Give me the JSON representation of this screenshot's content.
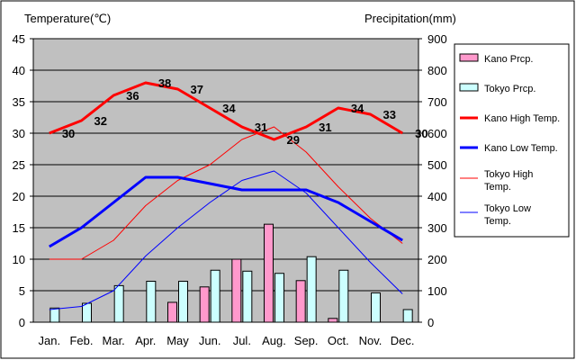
{
  "chart_data": {
    "type": "line",
    "y_left_label": "Temperature(℃)",
    "y_right_label": "Precipitation(mm)",
    "categories": [
      "Jan.",
      "Feb.",
      "Mar.",
      "Apr.",
      "May",
      "Jun.",
      "Jul.",
      "Aug.",
      "Sep.",
      "Oct.",
      "Nov.",
      "Dec."
    ],
    "y_left_ticks": [
      "0",
      "5",
      "10",
      "15",
      "20",
      "25",
      "30",
      "35",
      "40",
      "45"
    ],
    "y_right_ticks": [
      "0",
      "100",
      "200",
      "300",
      "400",
      "500",
      "600",
      "700",
      "800",
      "900"
    ],
    "y_left_range": [
      0,
      45
    ],
    "y_right_range": [
      0,
      900
    ],
    "grid": true,
    "plot_background": "#c0c0c0",
    "legend_position": "right",
    "bars": [
      {
        "name": "Kano Prcp.",
        "color": "#ff99cc",
        "axis": "right",
        "values": [
          0,
          0,
          0,
          0,
          63,
          112,
          200,
          311,
          132,
          12,
          0,
          0
        ]
      },
      {
        "name": "Tokyo Prcp.",
        "color": "#ccffff",
        "axis": "right",
        "values": [
          45,
          60,
          116,
          130,
          130,
          165,
          162,
          155,
          208,
          165,
          93,
          40
        ]
      }
    ],
    "lines": [
      {
        "name": "Kano High Temp.",
        "color": "#ff0000",
        "width": 3,
        "values": [
          30,
          32,
          36,
          38,
          37,
          34,
          31,
          29,
          31,
          34,
          33,
          30
        ],
        "labels": [
          "30",
          "32",
          "36",
          "38",
          "37",
          "34",
          "31",
          "29",
          "31",
          "34",
          "33",
          "30"
        ]
      },
      {
        "name": "Kano Low Temp.",
        "color": "#0000ff",
        "width": 3,
        "values": [
          12,
          15,
          19,
          23,
          23,
          22,
          21,
          21,
          21,
          19,
          16,
          13
        ]
      },
      {
        "name": "Tokyo High Temp.",
        "color": "#ff0000",
        "width": 1,
        "values": [
          10,
          10,
          13,
          18.5,
          22.5,
          25,
          29,
          31,
          27,
          21.5,
          16.5,
          12.5
        ]
      },
      {
        "name": "Tokyo Low Temp.",
        "color": "#0000ff",
        "width": 1,
        "values": [
          2,
          2.5,
          5,
          10.5,
          15,
          19,
          22.5,
          24,
          20.5,
          15,
          9.5,
          4.5
        ]
      }
    ],
    "legend": [
      {
        "label": "Kano Prcp.",
        "kind": "box",
        "color": "#ff99cc"
      },
      {
        "label": "Tokyo Prcp.",
        "kind": "box",
        "color": "#ccffff"
      },
      {
        "label": "Kano High Temp.",
        "kind": "line",
        "color": "#ff0000",
        "width": 3
      },
      {
        "label": "Kano Low Temp.",
        "kind": "line",
        "color": "#0000ff",
        "width": 3
      },
      {
        "label": "Tokyo High Temp.",
        "kind": "line",
        "color": "#ff0000",
        "width": 1
      },
      {
        "label": "Tokyo Low Temp.",
        "kind": "line",
        "color": "#0000ff",
        "width": 1
      }
    ]
  }
}
